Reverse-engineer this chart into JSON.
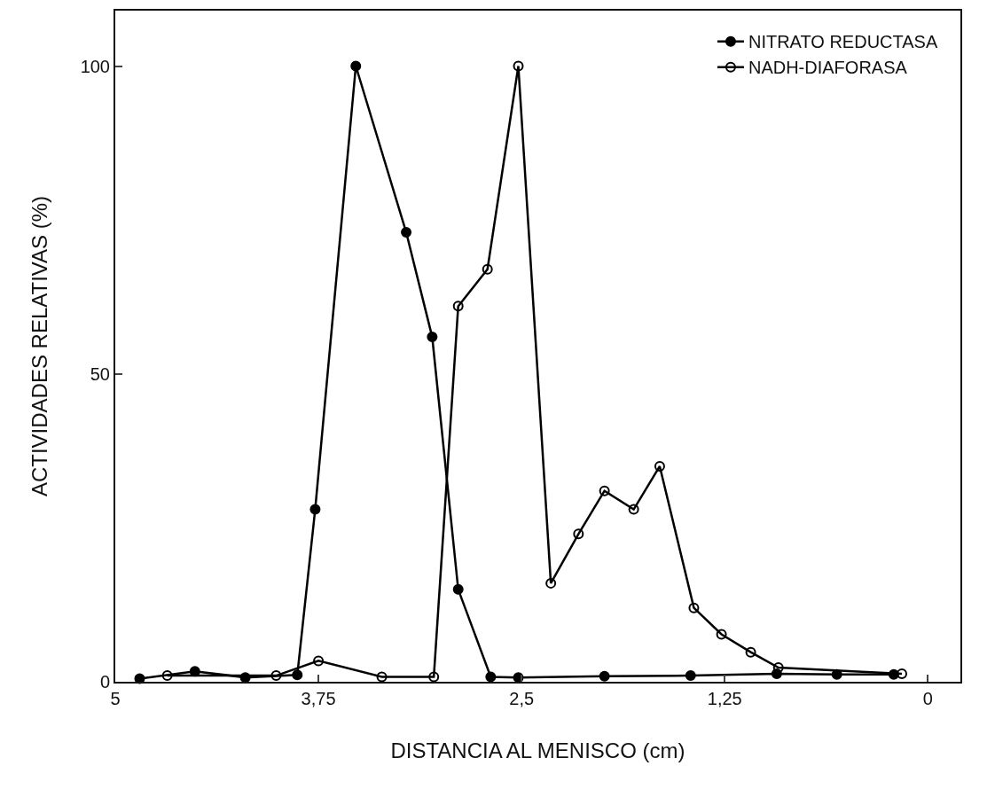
{
  "chart_data": {
    "type": "line",
    "xlabel": "DISTANCIA AL MENISCO (cm)",
    "ylabel": "ACTIVIDADES RELATIVAS (%)",
    "xlim": [
      5,
      -0.2
    ],
    "xticks": [
      5,
      {
        "value": 3.75,
        "label": "3,75"
      },
      {
        "value": 2.5,
        "label": "2,5"
      },
      {
        "value": 1.25,
        "label": "1,25"
      },
      0
    ],
    "ylim": [
      0,
      109
    ],
    "yticks": [
      0,
      50,
      100
    ],
    "grid": false,
    "legend": "top right",
    "line_style": "solid",
    "series": [
      {
        "name": "NITRATO REDUCTASA",
        "color": "#000000",
        "marker": "circle",
        "x": [
          4.85,
          4.51,
          4.2,
          3.88,
          3.77,
          3.52,
          3.21,
          3.05,
          2.89,
          2.69,
          2.52,
          1.99,
          1.46,
          0.93,
          0.56,
          0.21
        ],
        "values": [
          0.5,
          1.7,
          0.7,
          1.1,
          28,
          100,
          73,
          56,
          15,
          0.8,
          0.7,
          0.9,
          1,
          1.3,
          1.2,
          1.2
        ]
      },
      {
        "name": "NADH-DIAFORASA",
        "color": "#000000",
        "marker": "circle-open",
        "x": [
          4.68,
          4.01,
          3.75,
          3.36,
          3.04,
          2.89,
          2.71,
          2.52,
          2.32,
          2.15,
          1.99,
          1.81,
          1.65,
          1.44,
          1.27,
          1.09,
          0.92,
          0.16
        ],
        "values": [
          1,
          1,
          3.4,
          0.8,
          0.8,
          61,
          67,
          100,
          16,
          24,
          31,
          28,
          35,
          12,
          7.7,
          4.8,
          2.3,
          1.3
        ]
      }
    ]
  }
}
